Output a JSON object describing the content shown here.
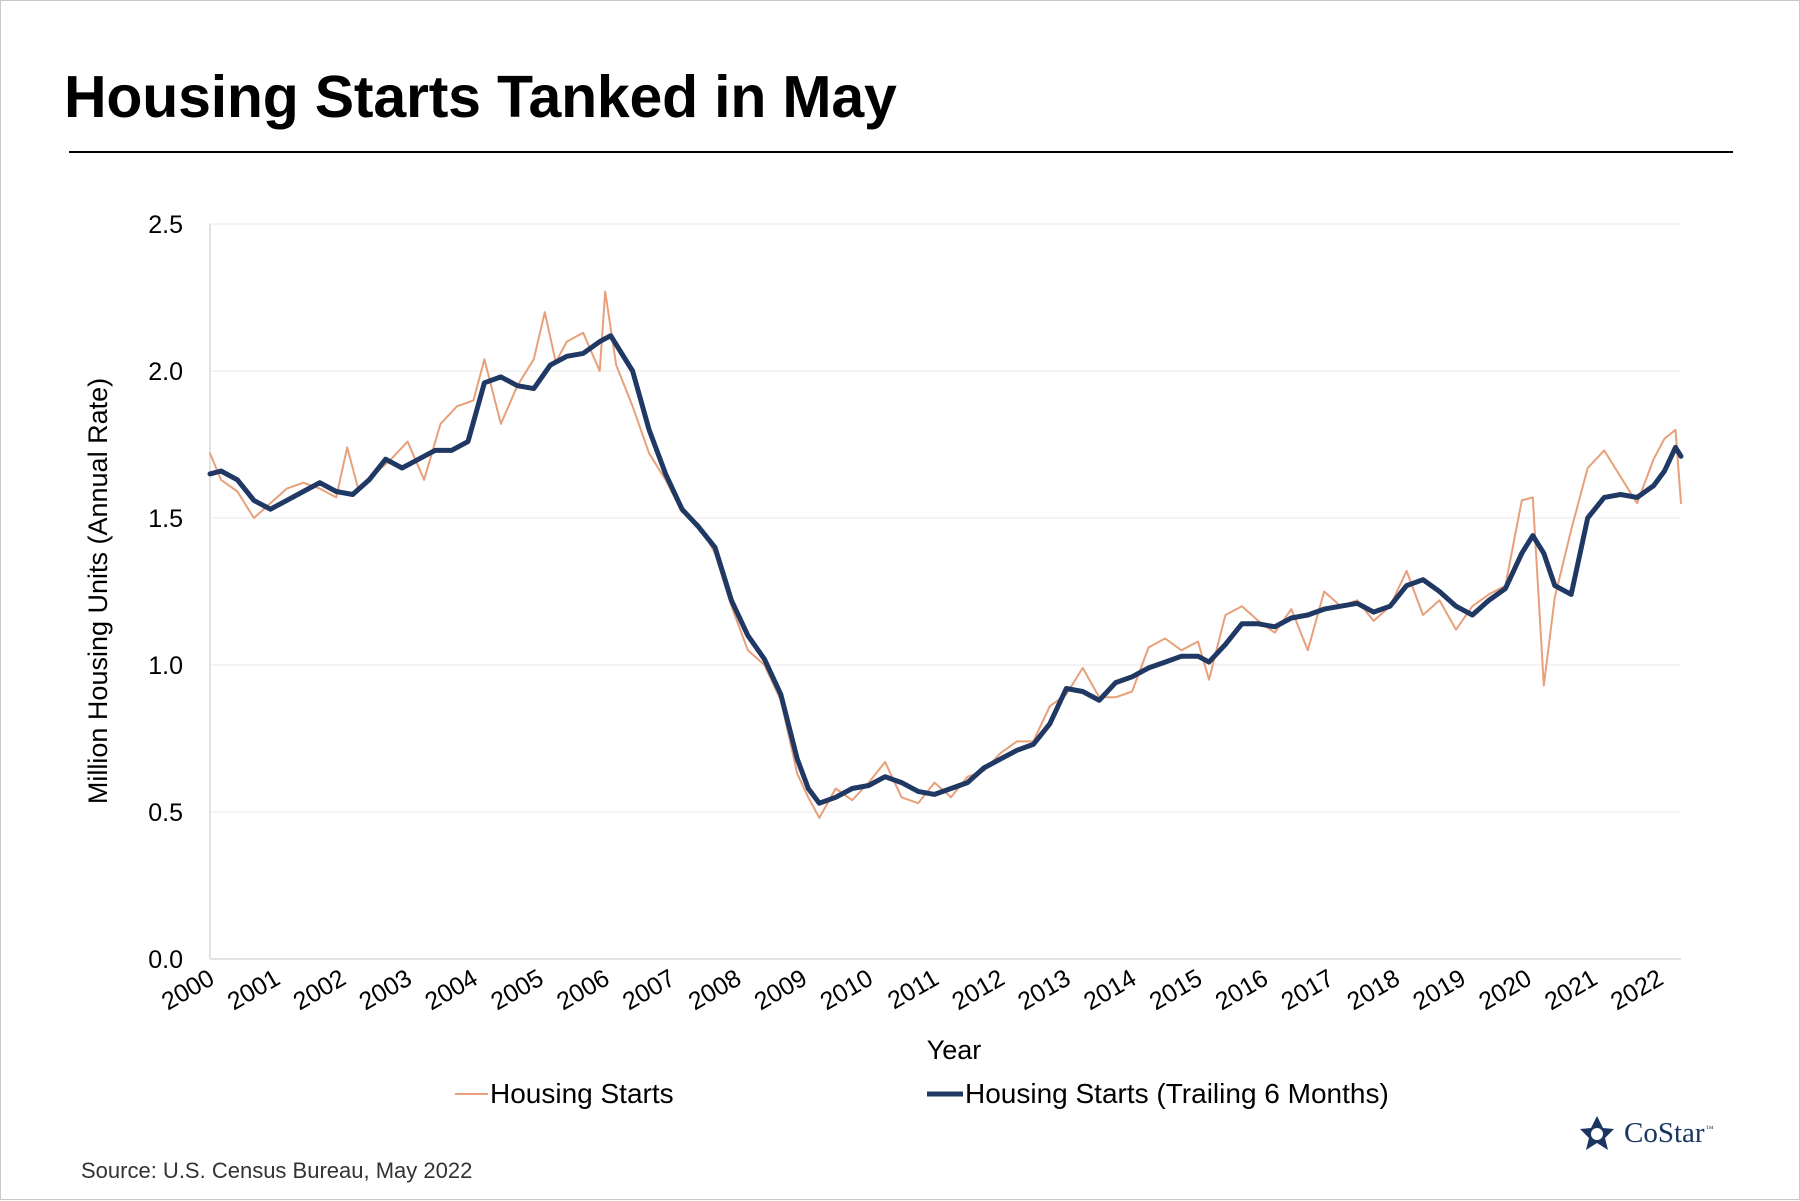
{
  "title": "Housing Starts Tanked in May",
  "source": "Source: U.S. Census Bureau, May 2022",
  "brand": {
    "name": "CoStar",
    "trademark": "™",
    "logo_icon": "costar-star-logo-icon"
  },
  "colors": {
    "raw": "#E8A07A",
    "trailing": "#1F3864",
    "grid": "#F0F0F0",
    "axis": "#D9D9D9"
  },
  "chart_data": {
    "type": "line",
    "title": "Housing Starts Tanked in May",
    "xlabel": "Year",
    "ylabel": "Million Housing Units (Annual Rate)",
    "ylim": [
      0,
      2.5
    ],
    "yticks": [
      "0.0",
      "0.5",
      "1.0",
      "1.5",
      "2.0",
      "2.5"
    ],
    "xticks": [
      "2000",
      "2001",
      "2002",
      "2003",
      "2004",
      "2005",
      "2006",
      "2007",
      "2008",
      "2009",
      "2010",
      "2011",
      "2012",
      "2013",
      "2014",
      "2015",
      "2016",
      "2017",
      "2018",
      "2019",
      "2020",
      "2021",
      "2022"
    ],
    "x_range": [
      "2000-01",
      "2022-05"
    ],
    "grid": "horizontal",
    "legend_position": "bottom",
    "series": [
      {
        "name": "Housing Starts",
        "frequency": "monthly",
        "points": [
          [
            "2000-01",
            1.72
          ],
          [
            "2000-03",
            1.63
          ],
          [
            "2000-06",
            1.59
          ],
          [
            "2000-09",
            1.5
          ],
          [
            "2000-12",
            1.55
          ],
          [
            "2001-03",
            1.6
          ],
          [
            "2001-06",
            1.62
          ],
          [
            "2001-09",
            1.6
          ],
          [
            "2001-12",
            1.57
          ],
          [
            "2002-02",
            1.74
          ],
          [
            "2002-04",
            1.6
          ],
          [
            "2002-07",
            1.65
          ],
          [
            "2002-10",
            1.7
          ],
          [
            "2003-01",
            1.76
          ],
          [
            "2003-04",
            1.63
          ],
          [
            "2003-07",
            1.82
          ],
          [
            "2003-10",
            1.88
          ],
          [
            "2004-01",
            1.9
          ],
          [
            "2004-03",
            2.04
          ],
          [
            "2004-06",
            1.82
          ],
          [
            "2004-09",
            1.95
          ],
          [
            "2004-12",
            2.04
          ],
          [
            "2005-02",
            2.2
          ],
          [
            "2005-04",
            2.03
          ],
          [
            "2005-06",
            2.1
          ],
          [
            "2005-09",
            2.13
          ],
          [
            "2005-12",
            2.0
          ],
          [
            "2006-01",
            2.27
          ],
          [
            "2006-03",
            2.02
          ],
          [
            "2006-06",
            1.88
          ],
          [
            "2006-09",
            1.72
          ],
          [
            "2006-12",
            1.63
          ],
          [
            "2007-03",
            1.52
          ],
          [
            "2007-06",
            1.48
          ],
          [
            "2007-09",
            1.38
          ],
          [
            "2007-12",
            1.2
          ],
          [
            "2008-03",
            1.05
          ],
          [
            "2008-06",
            1.0
          ],
          [
            "2008-09",
            0.88
          ],
          [
            "2008-12",
            0.63
          ],
          [
            "2009-02",
            0.55
          ],
          [
            "2009-04",
            0.48
          ],
          [
            "2009-07",
            0.58
          ],
          [
            "2009-10",
            0.54
          ],
          [
            "2010-01",
            0.6
          ],
          [
            "2010-04",
            0.67
          ],
          [
            "2010-07",
            0.55
          ],
          [
            "2010-10",
            0.53
          ],
          [
            "2011-01",
            0.6
          ],
          [
            "2011-04",
            0.55
          ],
          [
            "2011-07",
            0.62
          ],
          [
            "2011-10",
            0.64
          ],
          [
            "2012-01",
            0.7
          ],
          [
            "2012-04",
            0.74
          ],
          [
            "2012-07",
            0.74
          ],
          [
            "2012-10",
            0.86
          ],
          [
            "2013-01",
            0.9
          ],
          [
            "2013-04",
            0.99
          ],
          [
            "2013-07",
            0.89
          ],
          [
            "2013-10",
            0.89
          ],
          [
            "2014-01",
            0.91
          ],
          [
            "2014-04",
            1.06
          ],
          [
            "2014-07",
            1.09
          ],
          [
            "2014-10",
            1.05
          ],
          [
            "2015-01",
            1.08
          ],
          [
            "2015-03",
            0.95
          ],
          [
            "2015-06",
            1.17
          ],
          [
            "2015-09",
            1.2
          ],
          [
            "2015-12",
            1.15
          ],
          [
            "2016-03",
            1.11
          ],
          [
            "2016-06",
            1.19
          ],
          [
            "2016-09",
            1.05
          ],
          [
            "2016-12",
            1.25
          ],
          [
            "2017-03",
            1.2
          ],
          [
            "2017-06",
            1.22
          ],
          [
            "2017-09",
            1.15
          ],
          [
            "2017-12",
            1.2
          ],
          [
            "2018-03",
            1.32
          ],
          [
            "2018-06",
            1.17
          ],
          [
            "2018-09",
            1.22
          ],
          [
            "2018-12",
            1.12
          ],
          [
            "2019-03",
            1.2
          ],
          [
            "2019-06",
            1.24
          ],
          [
            "2019-09",
            1.27
          ],
          [
            "2019-12",
            1.56
          ],
          [
            "2020-02",
            1.57
          ],
          [
            "2020-04",
            0.93
          ],
          [
            "2020-06",
            1.23
          ],
          [
            "2020-09",
            1.46
          ],
          [
            "2020-12",
            1.67
          ],
          [
            "2021-03",
            1.73
          ],
          [
            "2021-06",
            1.64
          ],
          [
            "2021-09",
            1.55
          ],
          [
            "2021-12",
            1.7
          ],
          [
            "2022-02",
            1.77
          ],
          [
            "2022-04",
            1.8
          ],
          [
            "2022-05",
            1.55
          ]
        ]
      },
      {
        "name": "Housing Starts (Trailing 6 Months)",
        "frequency": "monthly",
        "points": [
          [
            "2000-01",
            1.65
          ],
          [
            "2000-03",
            1.66
          ],
          [
            "2000-06",
            1.63
          ],
          [
            "2000-09",
            1.56
          ],
          [
            "2000-12",
            1.53
          ],
          [
            "2001-03",
            1.56
          ],
          [
            "2001-06",
            1.59
          ],
          [
            "2001-09",
            1.62
          ],
          [
            "2001-12",
            1.59
          ],
          [
            "2002-03",
            1.58
          ],
          [
            "2002-06",
            1.63
          ],
          [
            "2002-09",
            1.7
          ],
          [
            "2002-12",
            1.67
          ],
          [
            "2003-03",
            1.7
          ],
          [
            "2003-06",
            1.73
          ],
          [
            "2003-09",
            1.73
          ],
          [
            "2003-12",
            1.76
          ],
          [
            "2004-03",
            1.96
          ],
          [
            "2004-06",
            1.98
          ],
          [
            "2004-09",
            1.95
          ],
          [
            "2004-12",
            1.94
          ],
          [
            "2005-03",
            2.02
          ],
          [
            "2005-06",
            2.05
          ],
          [
            "2005-09",
            2.06
          ],
          [
            "2005-12",
            2.1
          ],
          [
            "2006-02",
            2.12
          ],
          [
            "2006-06",
            2.0
          ],
          [
            "2006-09",
            1.8
          ],
          [
            "2006-12",
            1.65
          ],
          [
            "2007-03",
            1.53
          ],
          [
            "2007-06",
            1.47
          ],
          [
            "2007-09",
            1.4
          ],
          [
            "2007-12",
            1.22
          ],
          [
            "2008-03",
            1.1
          ],
          [
            "2008-06",
            1.02
          ],
          [
            "2008-09",
            0.9
          ],
          [
            "2008-12",
            0.68
          ],
          [
            "2009-02",
            0.58
          ],
          [
            "2009-04",
            0.53
          ],
          [
            "2009-07",
            0.55
          ],
          [
            "2009-10",
            0.58
          ],
          [
            "2010-01",
            0.59
          ],
          [
            "2010-04",
            0.62
          ],
          [
            "2010-07",
            0.6
          ],
          [
            "2010-10",
            0.57
          ],
          [
            "2011-01",
            0.56
          ],
          [
            "2011-04",
            0.58
          ],
          [
            "2011-07",
            0.6
          ],
          [
            "2011-10",
            0.65
          ],
          [
            "2012-01",
            0.68
          ],
          [
            "2012-04",
            0.71
          ],
          [
            "2012-07",
            0.73
          ],
          [
            "2012-10",
            0.8
          ],
          [
            "2013-01",
            0.92
          ],
          [
            "2013-04",
            0.91
          ],
          [
            "2013-07",
            0.88
          ],
          [
            "2013-10",
            0.94
          ],
          [
            "2014-01",
            0.96
          ],
          [
            "2014-04",
            0.99
          ],
          [
            "2014-07",
            1.01
          ],
          [
            "2014-10",
            1.03
          ],
          [
            "2015-01",
            1.03
          ],
          [
            "2015-03",
            1.01
          ],
          [
            "2015-06",
            1.07
          ],
          [
            "2015-09",
            1.14
          ],
          [
            "2015-12",
            1.14
          ],
          [
            "2016-03",
            1.13
          ],
          [
            "2016-06",
            1.16
          ],
          [
            "2016-09",
            1.17
          ],
          [
            "2016-12",
            1.19
          ],
          [
            "2017-03",
            1.2
          ],
          [
            "2017-06",
            1.21
          ],
          [
            "2017-09",
            1.18
          ],
          [
            "2017-12",
            1.2
          ],
          [
            "2018-03",
            1.27
          ],
          [
            "2018-06",
            1.29
          ],
          [
            "2018-09",
            1.25
          ],
          [
            "2018-12",
            1.2
          ],
          [
            "2019-03",
            1.17
          ],
          [
            "2019-06",
            1.22
          ],
          [
            "2019-09",
            1.26
          ],
          [
            "2019-12",
            1.38
          ],
          [
            "2020-02",
            1.44
          ],
          [
            "2020-04",
            1.38
          ],
          [
            "2020-06",
            1.27
          ],
          [
            "2020-09",
            1.24
          ],
          [
            "2020-12",
            1.5
          ],
          [
            "2021-03",
            1.57
          ],
          [
            "2021-06",
            1.58
          ],
          [
            "2021-09",
            1.57
          ],
          [
            "2021-12",
            1.61
          ],
          [
            "2022-02",
            1.66
          ],
          [
            "2022-04",
            1.74
          ],
          [
            "2022-05",
            1.71
          ]
        ]
      }
    ]
  }
}
